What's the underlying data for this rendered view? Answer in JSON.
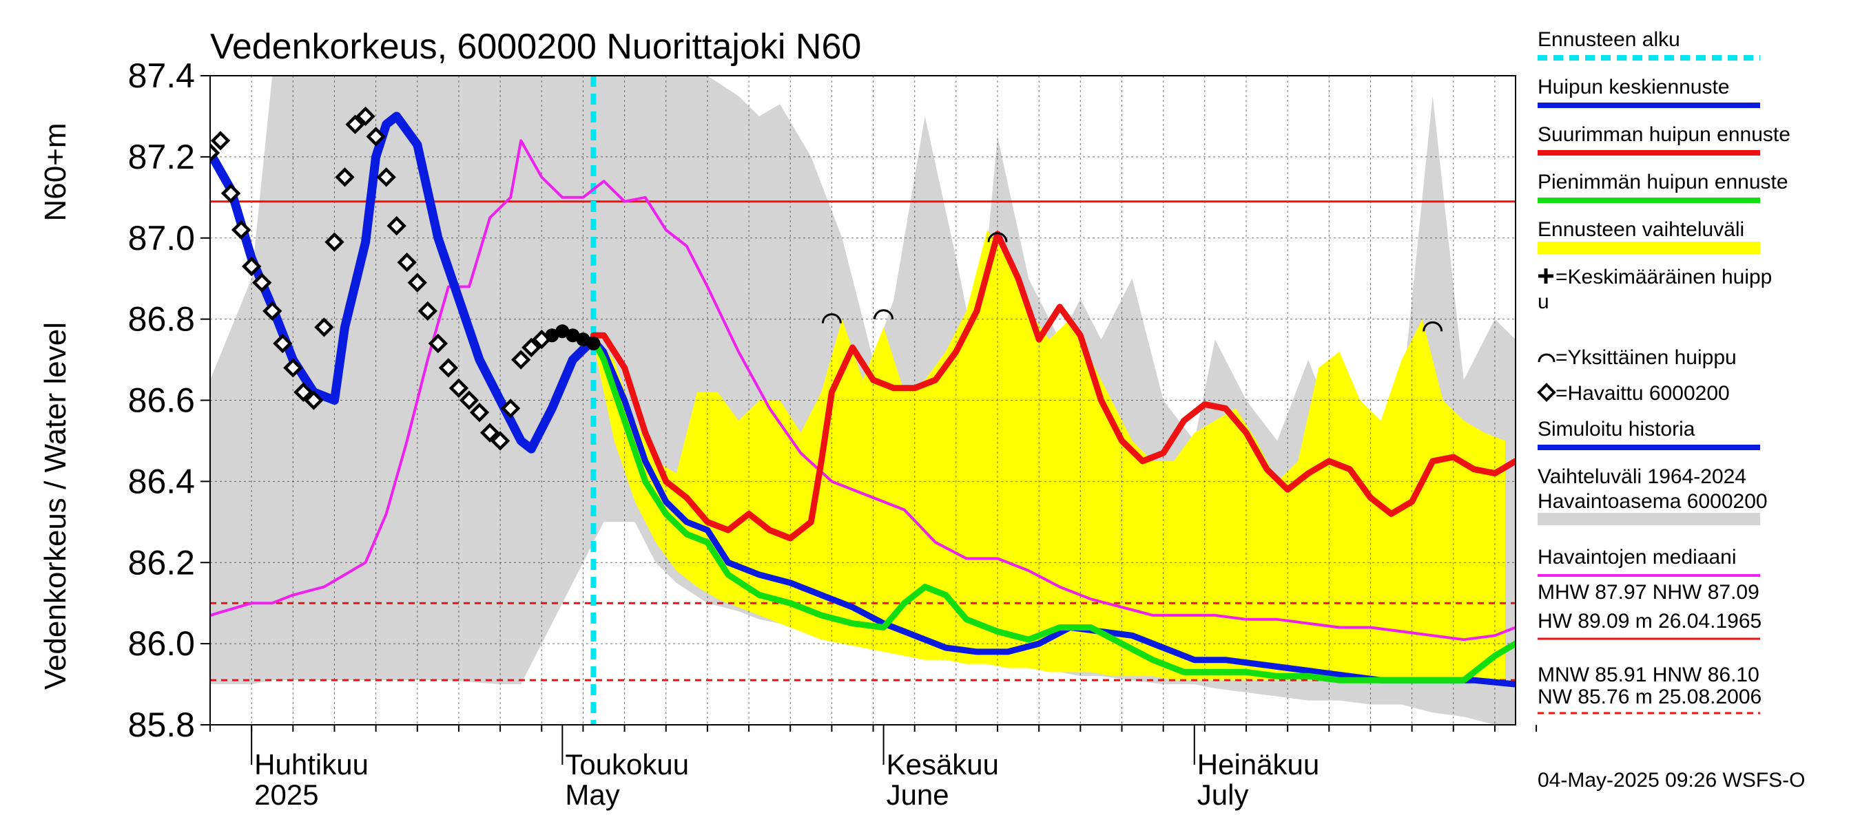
{
  "chart_data": {
    "type": "line",
    "title": "Vedenkorkeus, 6000200 Nuorittajoki N60",
    "ylabel": "Vedenkorkeus / Water level",
    "yunit": "N60+m",
    "ylim": [
      85.8,
      87.4
    ],
    "yticks": [
      "85.8",
      "86.0",
      "86.2",
      "86.4",
      "86.6",
      "86.8",
      "87.0",
      "87.2",
      "87.4"
    ],
    "xlim": [
      "2025-03-28",
      "2025-08-01"
    ],
    "months": [
      {
        "name": "Huhtikuu",
        "name_en": "2025",
        "start": "2025-04-01"
      },
      {
        "name": "Toukokuu",
        "name_en": "May",
        "start": "2025-05-01"
      },
      {
        "name": "Kesäkuu",
        "name_en": "June",
        "start": "2025-06-01"
      },
      {
        "name": "Heinäkuu",
        "name_en": "July",
        "start": "2025-07-01"
      }
    ],
    "forecast_start": "2025-05-04",
    "colors": {
      "forecast_start": "#00e5ee",
      "mean_forecast": "#0a1be0",
      "max_forecast": "#ee1111",
      "min_forecast": "#11dd11",
      "forecast_range": "#ffff00",
      "hist_range": "#d4d4d4",
      "median": "#ee22ee",
      "simulated": "#0a1be0",
      "threshold_high": "#ee1111",
      "threshold_low": "#ee1111"
    },
    "reference_lines": {
      "nhw": 87.09,
      "hnw": 86.1,
      "mnw": 85.91
    },
    "hist_range": {
      "x": [
        "2025-03-28",
        "2025-04-01",
        "2025-04-03",
        "2025-04-10",
        "2025-04-20",
        "2025-04-25",
        "2025-04-27",
        "2025-05-01",
        "2025-05-03",
        "2025-05-05",
        "2025-05-08",
        "2025-05-10",
        "2025-05-12",
        "2025-05-15",
        "2025-05-18",
        "2025-05-20",
        "2025-05-22",
        "2025-05-25",
        "2025-05-28",
        "2025-05-31",
        "2025-06-02",
        "2025-06-05",
        "2025-06-08",
        "2025-06-10",
        "2025-06-12",
        "2025-06-15",
        "2025-06-18",
        "2025-06-20",
        "2025-06-22",
        "2025-06-25",
        "2025-06-28",
        "2025-07-01",
        "2025-07-03",
        "2025-07-06",
        "2025-07-09",
        "2025-07-12",
        "2025-07-15",
        "2025-07-18",
        "2025-07-21",
        "2025-07-24",
        "2025-07-27",
        "2025-07-30",
        "2025-08-01"
      ],
      "upper": [
        86.65,
        86.9,
        87.4,
        87.4,
        87.4,
        87.4,
        87.4,
        87.4,
        87.4,
        87.4,
        87.4,
        87.4,
        87.4,
        87.4,
        87.35,
        87.3,
        87.33,
        87.2,
        87.0,
        86.7,
        86.85,
        87.3,
        86.95,
        86.7,
        87.25,
        86.9,
        86.75,
        86.85,
        86.75,
        86.9,
        86.6,
        86.5,
        86.75,
        86.6,
        86.5,
        86.7,
        86.5,
        86.5,
        86.6,
        87.35,
        86.65,
        86.8,
        86.75
      ],
      "lower": [
        85.9,
        85.9,
        85.91,
        85.91,
        85.91,
        85.9,
        85.9,
        86.1,
        86.2,
        86.3,
        86.3,
        86.2,
        86.15,
        86.1,
        86.08,
        86.06,
        86.05,
        86.05,
        86.03,
        86.01,
        86.0,
        86.0,
        85.98,
        85.96,
        85.95,
        85.94,
        85.93,
        85.92,
        85.92,
        85.91,
        85.9,
        85.9,
        85.89,
        85.88,
        85.87,
        85.86,
        85.86,
        85.85,
        85.85,
        85.83,
        85.82,
        85.8,
        85.8
      ]
    },
    "forecast_range": {
      "x": [
        "2025-05-04",
        "2025-05-06",
        "2025-05-08",
        "2025-05-10",
        "2025-05-12",
        "2025-05-14",
        "2025-05-16",
        "2025-05-18",
        "2025-05-20",
        "2025-05-22",
        "2025-05-24",
        "2025-05-26",
        "2025-05-28",
        "2025-05-30",
        "2025-06-01",
        "2025-06-03",
        "2025-06-05",
        "2025-06-07",
        "2025-06-09",
        "2025-06-11",
        "2025-06-13",
        "2025-06-15",
        "2025-06-17",
        "2025-06-19",
        "2025-06-21",
        "2025-06-23",
        "2025-06-25",
        "2025-06-27",
        "2025-06-29",
        "2025-07-01",
        "2025-07-03",
        "2025-07-05",
        "2025-07-07",
        "2025-07-09",
        "2025-07-11",
        "2025-07-13",
        "2025-07-15",
        "2025-07-17",
        "2025-07-19",
        "2025-07-21",
        "2025-07-23",
        "2025-07-25",
        "2025-07-27",
        "2025-07-29",
        "2025-07-31"
      ],
      "upper": [
        86.76,
        86.7,
        86.55,
        86.45,
        86.42,
        86.62,
        86.62,
        86.55,
        86.6,
        86.6,
        86.52,
        86.62,
        86.8,
        86.65,
        86.78,
        86.62,
        86.65,
        86.72,
        86.82,
        87.02,
        86.95,
        86.82,
        86.75,
        86.8,
        86.7,
        86.6,
        86.5,
        86.45,
        86.45,
        86.52,
        86.55,
        86.58,
        86.5,
        86.4,
        86.45,
        86.68,
        86.72,
        86.6,
        86.55,
        86.7,
        86.8,
        86.6,
        86.55,
        86.52,
        86.5
      ],
      "lower": [
        86.74,
        86.5,
        86.35,
        86.25,
        86.18,
        86.14,
        86.11,
        86.09,
        86.07,
        86.05,
        86.03,
        86.01,
        86.0,
        85.99,
        85.98,
        85.97,
        85.96,
        85.96,
        85.95,
        85.95,
        85.94,
        85.94,
        85.93,
        85.93,
        85.93,
        85.92,
        85.92,
        85.92,
        85.91,
        85.91,
        85.91,
        85.91,
        85.91,
        85.91,
        85.91,
        85.91,
        85.91,
        85.91,
        85.91,
        85.91,
        85.91,
        85.91,
        85.91,
        85.91,
        85.91
      ]
    },
    "series": [
      {
        "name": "Havaintojen mediaani",
        "key": "median",
        "x": [
          "2025-03-28",
          "2025-04-01",
          "2025-04-03",
          "2025-04-05",
          "2025-04-08",
          "2025-04-10",
          "2025-04-12",
          "2025-04-14",
          "2025-04-16",
          "2025-04-18",
          "2025-04-20",
          "2025-04-22",
          "2025-04-24",
          "2025-04-26",
          "2025-04-27",
          "2025-04-29",
          "2025-05-01",
          "2025-05-03",
          "2025-05-05",
          "2025-05-07",
          "2025-05-09",
          "2025-05-11",
          "2025-05-13",
          "2025-05-15",
          "2025-05-18",
          "2025-05-21",
          "2025-05-24",
          "2025-05-27",
          "2025-05-30",
          "2025-06-03",
          "2025-06-06",
          "2025-06-09",
          "2025-06-12",
          "2025-06-15",
          "2025-06-18",
          "2025-06-21",
          "2025-06-24",
          "2025-06-27",
          "2025-06-30",
          "2025-07-03",
          "2025-07-06",
          "2025-07-09",
          "2025-07-12",
          "2025-07-15",
          "2025-07-18",
          "2025-07-21",
          "2025-07-24",
          "2025-07-27",
          "2025-07-30",
          "2025-08-01"
        ],
        "y": [
          86.07,
          86.1,
          86.1,
          86.12,
          86.14,
          86.17,
          86.2,
          86.32,
          86.5,
          86.7,
          86.88,
          86.88,
          87.05,
          87.1,
          87.24,
          87.15,
          87.1,
          87.1,
          87.14,
          87.09,
          87.1,
          87.02,
          86.98,
          86.88,
          86.72,
          86.58,
          86.47,
          86.4,
          86.37,
          86.33,
          86.25,
          86.21,
          86.21,
          86.18,
          86.14,
          86.11,
          86.09,
          86.07,
          86.07,
          86.07,
          86.06,
          86.06,
          86.05,
          86.04,
          86.04,
          86.03,
          86.02,
          86.01,
          86.02,
          86.04
        ]
      },
      {
        "name": "Simuloitu historia",
        "key": "simulated",
        "x": [
          "2025-03-28",
          "2025-03-30",
          "2025-04-01",
          "2025-04-03",
          "2025-04-05",
          "2025-04-07",
          "2025-04-09",
          "2025-04-10",
          "2025-04-12",
          "2025-04-13",
          "2025-04-14",
          "2025-04-15",
          "2025-04-17",
          "2025-04-19",
          "2025-04-21",
          "2025-04-23",
          "2025-04-25",
          "2025-04-27",
          "2025-04-28",
          "2025-04-30",
          "2025-05-02",
          "2025-05-04"
        ],
        "y": [
          87.21,
          87.12,
          86.95,
          86.83,
          86.7,
          86.62,
          86.6,
          86.78,
          86.99,
          87.2,
          87.28,
          87.3,
          87.23,
          87.0,
          86.85,
          86.7,
          86.6,
          86.5,
          86.48,
          86.58,
          86.7,
          86.75
        ]
      },
      {
        "name": "Huipun keskiennuste",
        "key": "mean_forecast",
        "x": [
          "2025-05-04",
          "2025-05-05",
          "2025-05-07",
          "2025-05-09",
          "2025-05-11",
          "2025-05-13",
          "2025-05-15",
          "2025-05-17",
          "2025-05-20",
          "2025-05-23",
          "2025-05-26",
          "2025-05-29",
          "2025-06-01",
          "2025-06-04",
          "2025-06-07",
          "2025-06-10",
          "2025-06-13",
          "2025-06-16",
          "2025-06-19",
          "2025-06-22",
          "2025-06-25",
          "2025-06-28",
          "2025-07-01",
          "2025-07-04",
          "2025-07-07",
          "2025-07-10",
          "2025-07-13",
          "2025-07-16",
          "2025-07-19",
          "2025-07-22",
          "2025-07-25",
          "2025-07-28",
          "2025-08-01"
        ],
        "y": [
          86.75,
          86.72,
          86.6,
          86.45,
          86.35,
          86.3,
          86.28,
          86.2,
          86.17,
          86.15,
          86.12,
          86.09,
          86.05,
          86.02,
          85.99,
          85.98,
          85.98,
          86.0,
          86.04,
          86.03,
          86.02,
          85.99,
          85.96,
          85.96,
          85.95,
          85.94,
          85.93,
          85.92,
          85.91,
          85.91,
          85.91,
          85.91,
          85.9
        ]
      },
      {
        "name": "Pienimmän huipun ennuste",
        "key": "min_forecast",
        "x": [
          "2025-05-04",
          "2025-05-05",
          "2025-05-07",
          "2025-05-09",
          "2025-05-11",
          "2025-05-13",
          "2025-05-15",
          "2025-05-17",
          "2025-05-20",
          "2025-05-23",
          "2025-05-26",
          "2025-05-29",
          "2025-06-01",
          "2025-06-03",
          "2025-06-05",
          "2025-06-07",
          "2025-06-09",
          "2025-06-12",
          "2025-06-15",
          "2025-06-18",
          "2025-06-21",
          "2025-06-24",
          "2025-06-27",
          "2025-06-30",
          "2025-07-03",
          "2025-07-06",
          "2025-07-09",
          "2025-07-12",
          "2025-07-15",
          "2025-07-18",
          "2025-07-21",
          "2025-07-24",
          "2025-07-27",
          "2025-07-30",
          "2025-08-01"
        ],
        "y": [
          86.75,
          86.7,
          86.55,
          86.4,
          86.32,
          86.27,
          86.25,
          86.17,
          86.12,
          86.1,
          86.07,
          86.05,
          86.04,
          86.1,
          86.14,
          86.12,
          86.06,
          86.03,
          86.01,
          86.04,
          86.04,
          86.0,
          85.96,
          85.93,
          85.93,
          85.93,
          85.92,
          85.92,
          85.91,
          85.91,
          85.91,
          85.91,
          85.91,
          85.97,
          86.0
        ]
      },
      {
        "name": "Suurimman huipun ennuste",
        "key": "max_forecast",
        "x": [
          "2025-05-04",
          "2025-05-05",
          "2025-05-07",
          "2025-05-09",
          "2025-05-11",
          "2025-05-13",
          "2025-05-15",
          "2025-05-17",
          "2025-05-19",
          "2025-05-21",
          "2025-05-23",
          "2025-05-25",
          "2025-05-26",
          "2025-05-27",
          "2025-05-29",
          "2025-05-31",
          "2025-06-02",
          "2025-06-04",
          "2025-06-06",
          "2025-06-08",
          "2025-06-10",
          "2025-06-12",
          "2025-06-14",
          "2025-06-16",
          "2025-06-18",
          "2025-06-20",
          "2025-06-22",
          "2025-06-24",
          "2025-06-26",
          "2025-06-28",
          "2025-06-30",
          "2025-07-02",
          "2025-07-04",
          "2025-07-06",
          "2025-07-08",
          "2025-07-10",
          "2025-07-12",
          "2025-07-14",
          "2025-07-16",
          "2025-07-18",
          "2025-07-20",
          "2025-07-22",
          "2025-07-24",
          "2025-07-26",
          "2025-07-28",
          "2025-07-30",
          "2025-08-01"
        ],
        "y": [
          86.76,
          86.76,
          86.68,
          86.52,
          86.4,
          86.36,
          86.3,
          86.28,
          86.32,
          86.28,
          86.26,
          86.3,
          86.45,
          86.62,
          86.73,
          86.65,
          86.63,
          86.63,
          86.65,
          86.72,
          86.82,
          87.01,
          86.9,
          86.75,
          86.83,
          86.76,
          86.6,
          86.5,
          86.45,
          86.47,
          86.55,
          86.59,
          86.58,
          86.52,
          86.43,
          86.38,
          86.42,
          86.45,
          86.43,
          86.36,
          86.32,
          86.35,
          86.45,
          86.46,
          86.43,
          86.42,
          86.45
        ]
      }
    ],
    "observed": {
      "name": "Havaittu 6000200",
      "x": [
        "2025-03-28",
        "2025-03-29",
        "2025-03-30",
        "2025-03-31",
        "2025-04-01",
        "2025-04-02",
        "2025-04-03",
        "2025-04-04",
        "2025-04-05",
        "2025-04-06",
        "2025-04-07",
        "2025-04-08",
        "2025-04-09",
        "2025-04-10",
        "2025-04-11",
        "2025-04-12",
        "2025-04-13",
        "2025-04-14",
        "2025-04-15",
        "2025-04-16",
        "2025-04-17",
        "2025-04-18",
        "2025-04-19",
        "2025-04-20",
        "2025-04-21",
        "2025-04-22",
        "2025-04-23",
        "2025-04-24",
        "2025-04-25",
        "2025-04-26",
        "2025-04-27",
        "2025-04-28",
        "2025-04-29",
        "2025-04-30",
        "2025-05-01",
        "2025-05-02",
        "2025-05-03",
        "2025-05-04"
      ],
      "y": [
        87.21,
        87.24,
        87.11,
        87.02,
        86.93,
        86.89,
        86.82,
        86.74,
        86.68,
        86.62,
        86.6,
        86.78,
        86.99,
        87.15,
        87.28,
        87.3,
        87.25,
        87.15,
        87.03,
        86.94,
        86.89,
        86.82,
        86.74,
        86.68,
        86.63,
        86.6,
        86.57,
        86.52,
        86.5,
        86.58,
        86.7,
        86.73,
        86.75,
        86.76,
        86.77,
        86.76,
        86.75,
        86.74
      ]
    },
    "peaks": {
      "name": "Yksittäinen huippu",
      "x": [
        "2025-05-27",
        "2025-06-01",
        "2025-06-12",
        "2025-07-24"
      ],
      "y": [
        86.8,
        86.81,
        87.0,
        86.78
      ]
    },
    "legend": [
      {
        "label": "Ennusteen alku",
        "key": "forecast_start",
        "style": "dash"
      },
      {
        "label": "Huipun keskiennuste",
        "key": "mean_forecast",
        "style": "line"
      },
      {
        "label": "Suurimman huipun ennuste",
        "key": "max_forecast",
        "style": "line"
      },
      {
        "label": "Pienimmän huipun ennuste",
        "key": "min_forecast",
        "style": "line"
      },
      {
        "label": "Ennusteen vaihteluväli",
        "key": "forecast_range",
        "style": "band"
      },
      {
        "label": "=Keskimääräinen huipp",
        "label2": "u",
        "key": "mean_peak",
        "style": "cross"
      },
      {
        "label": "=Yksittäinen huippu",
        "key": "single_peak",
        "style": "arc"
      },
      {
        "label": "=Havaittu 6000200",
        "key": "observed",
        "style": "diamond"
      },
      {
        "label": "Simuloitu historia",
        "key": "simulated",
        "style": "line"
      },
      {
        "label": "Vaihteluväli 1964-2024",
        "label2": " Havaintoasema 6000200",
        "key": "hist_range",
        "style": "band"
      },
      {
        "label": "Havaintojen mediaani",
        "key": "median",
        "style": "line"
      }
    ],
    "stats": {
      "line1": "MHW  87.97 NHW  87.09",
      "line2": "HW  89.09 m 26.04.1965",
      "line3": "MNW  85.91 HNW  86.10",
      "line4": "NW  85.76 m 25.08.2006"
    },
    "timestamp": "04-May-2025 09:26 WSFS-O"
  }
}
